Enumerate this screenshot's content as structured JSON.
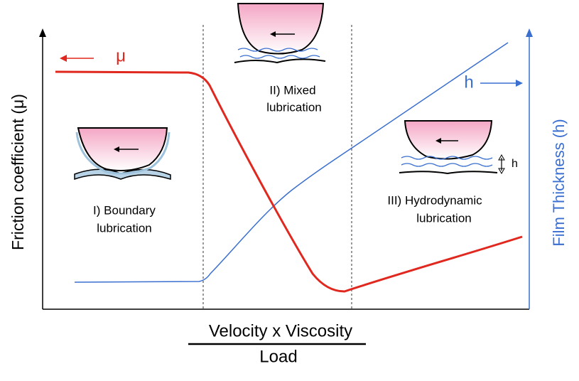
{
  "axes": {
    "y_left_label": "Friction coefficient (μ)",
    "y_right_label": "Film Thickness (h)",
    "x_label_numerator": "Velocity x Viscosity",
    "x_label_denominator": "Load"
  },
  "curve_labels": {
    "friction": "μ",
    "film": "h"
  },
  "regions": [
    {
      "label_lines": [
        "I) Boundary",
        "lubrication"
      ]
    },
    {
      "label_lines": [
        "II) Mixed",
        "lubrication"
      ]
    },
    {
      "label_lines": [
        "III) Hydrodynamic",
        "lubrication"
      ]
    }
  ],
  "gap_label": "h"
}
